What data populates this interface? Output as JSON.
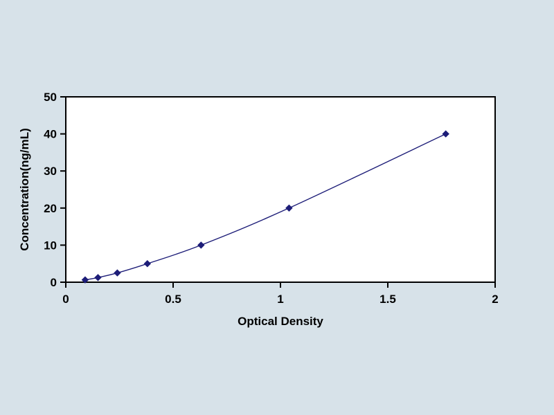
{
  "page": {
    "background": "#d7e2e9"
  },
  "colors": {
    "plot_bg": "#ffffff",
    "axis": "#000000",
    "text": "#000000",
    "line": "#1d1d78",
    "marker": "#1d1d78"
  },
  "chart_data": {
    "type": "line",
    "title": "",
    "xlabel": "Optical Density",
    "ylabel": "Concentration(ng/mL)",
    "x": [
      0.09,
      0.15,
      0.24,
      0.38,
      0.63,
      1.04,
      1.77
    ],
    "y": [
      0.625,
      1.25,
      2.5,
      5,
      10,
      20,
      40
    ],
    "xlim": [
      0,
      2
    ],
    "ylim": [
      0,
      50
    ],
    "x_ticks": [
      0,
      0.5,
      1,
      1.5,
      2
    ],
    "x_tick_labels": [
      "0",
      "0.5",
      "1",
      "1.5",
      "2"
    ],
    "y_ticks": [
      0,
      10,
      20,
      30,
      40,
      50
    ],
    "y_tick_labels": [
      "0",
      "10",
      "20",
      "30",
      "40",
      "50"
    ],
    "marker": "diamond",
    "grid": false,
    "legend": null
  }
}
